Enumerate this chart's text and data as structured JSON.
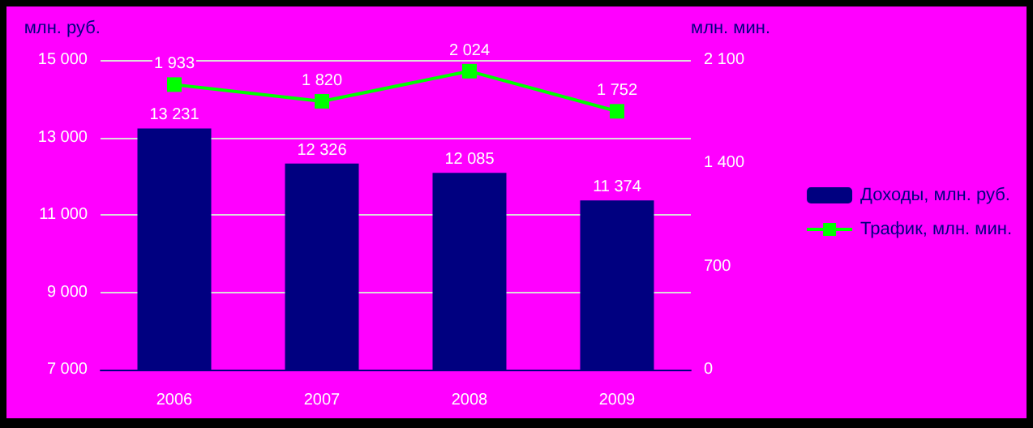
{
  "chart_data": {
    "type": "bar",
    "ylabel": "млн. руб.",
    "y2label": "млн. мин.",
    "categories": [
      "2006",
      "2007",
      "2008",
      "2009"
    ],
    "series": [
      {
        "name": "Доходы, млн. руб.",
        "color": "#000080",
        "values": [
          13231,
          12326,
          12085,
          11374
        ],
        "value_labels": [
          "13 231",
          "12 326",
          "12 085",
          "11 374"
        ]
      },
      {
        "name": "Трафик, млн. мин.",
        "type": "line",
        "axis": "y2",
        "color": "#00ff00",
        "marker": "square",
        "values": [
          1933,
          1820,
          2024,
          1752
        ],
        "value_labels": [
          "1 933",
          "1 820",
          "2 024",
          "1 752"
        ]
      }
    ],
    "ylim": [
      7000,
      15000
    ],
    "yticks": [
      {
        "value": 7000,
        "label": "7 000"
      },
      {
        "value": 9000,
        "label": "9 000"
      },
      {
        "value": 11000,
        "label": "11 000"
      },
      {
        "value": 13000,
        "label": "13 000"
      },
      {
        "value": 15000,
        "label": "15 000"
      }
    ],
    "y2lim": [
      0,
      2100
    ],
    "y2ticks": [
      0,
      700,
      {
        "value": 1400,
        "label": "1 400"
      },
      {
        "value": 2100,
        "label": "2 100"
      }
    ],
    "grid": "y",
    "legend": "right"
  }
}
